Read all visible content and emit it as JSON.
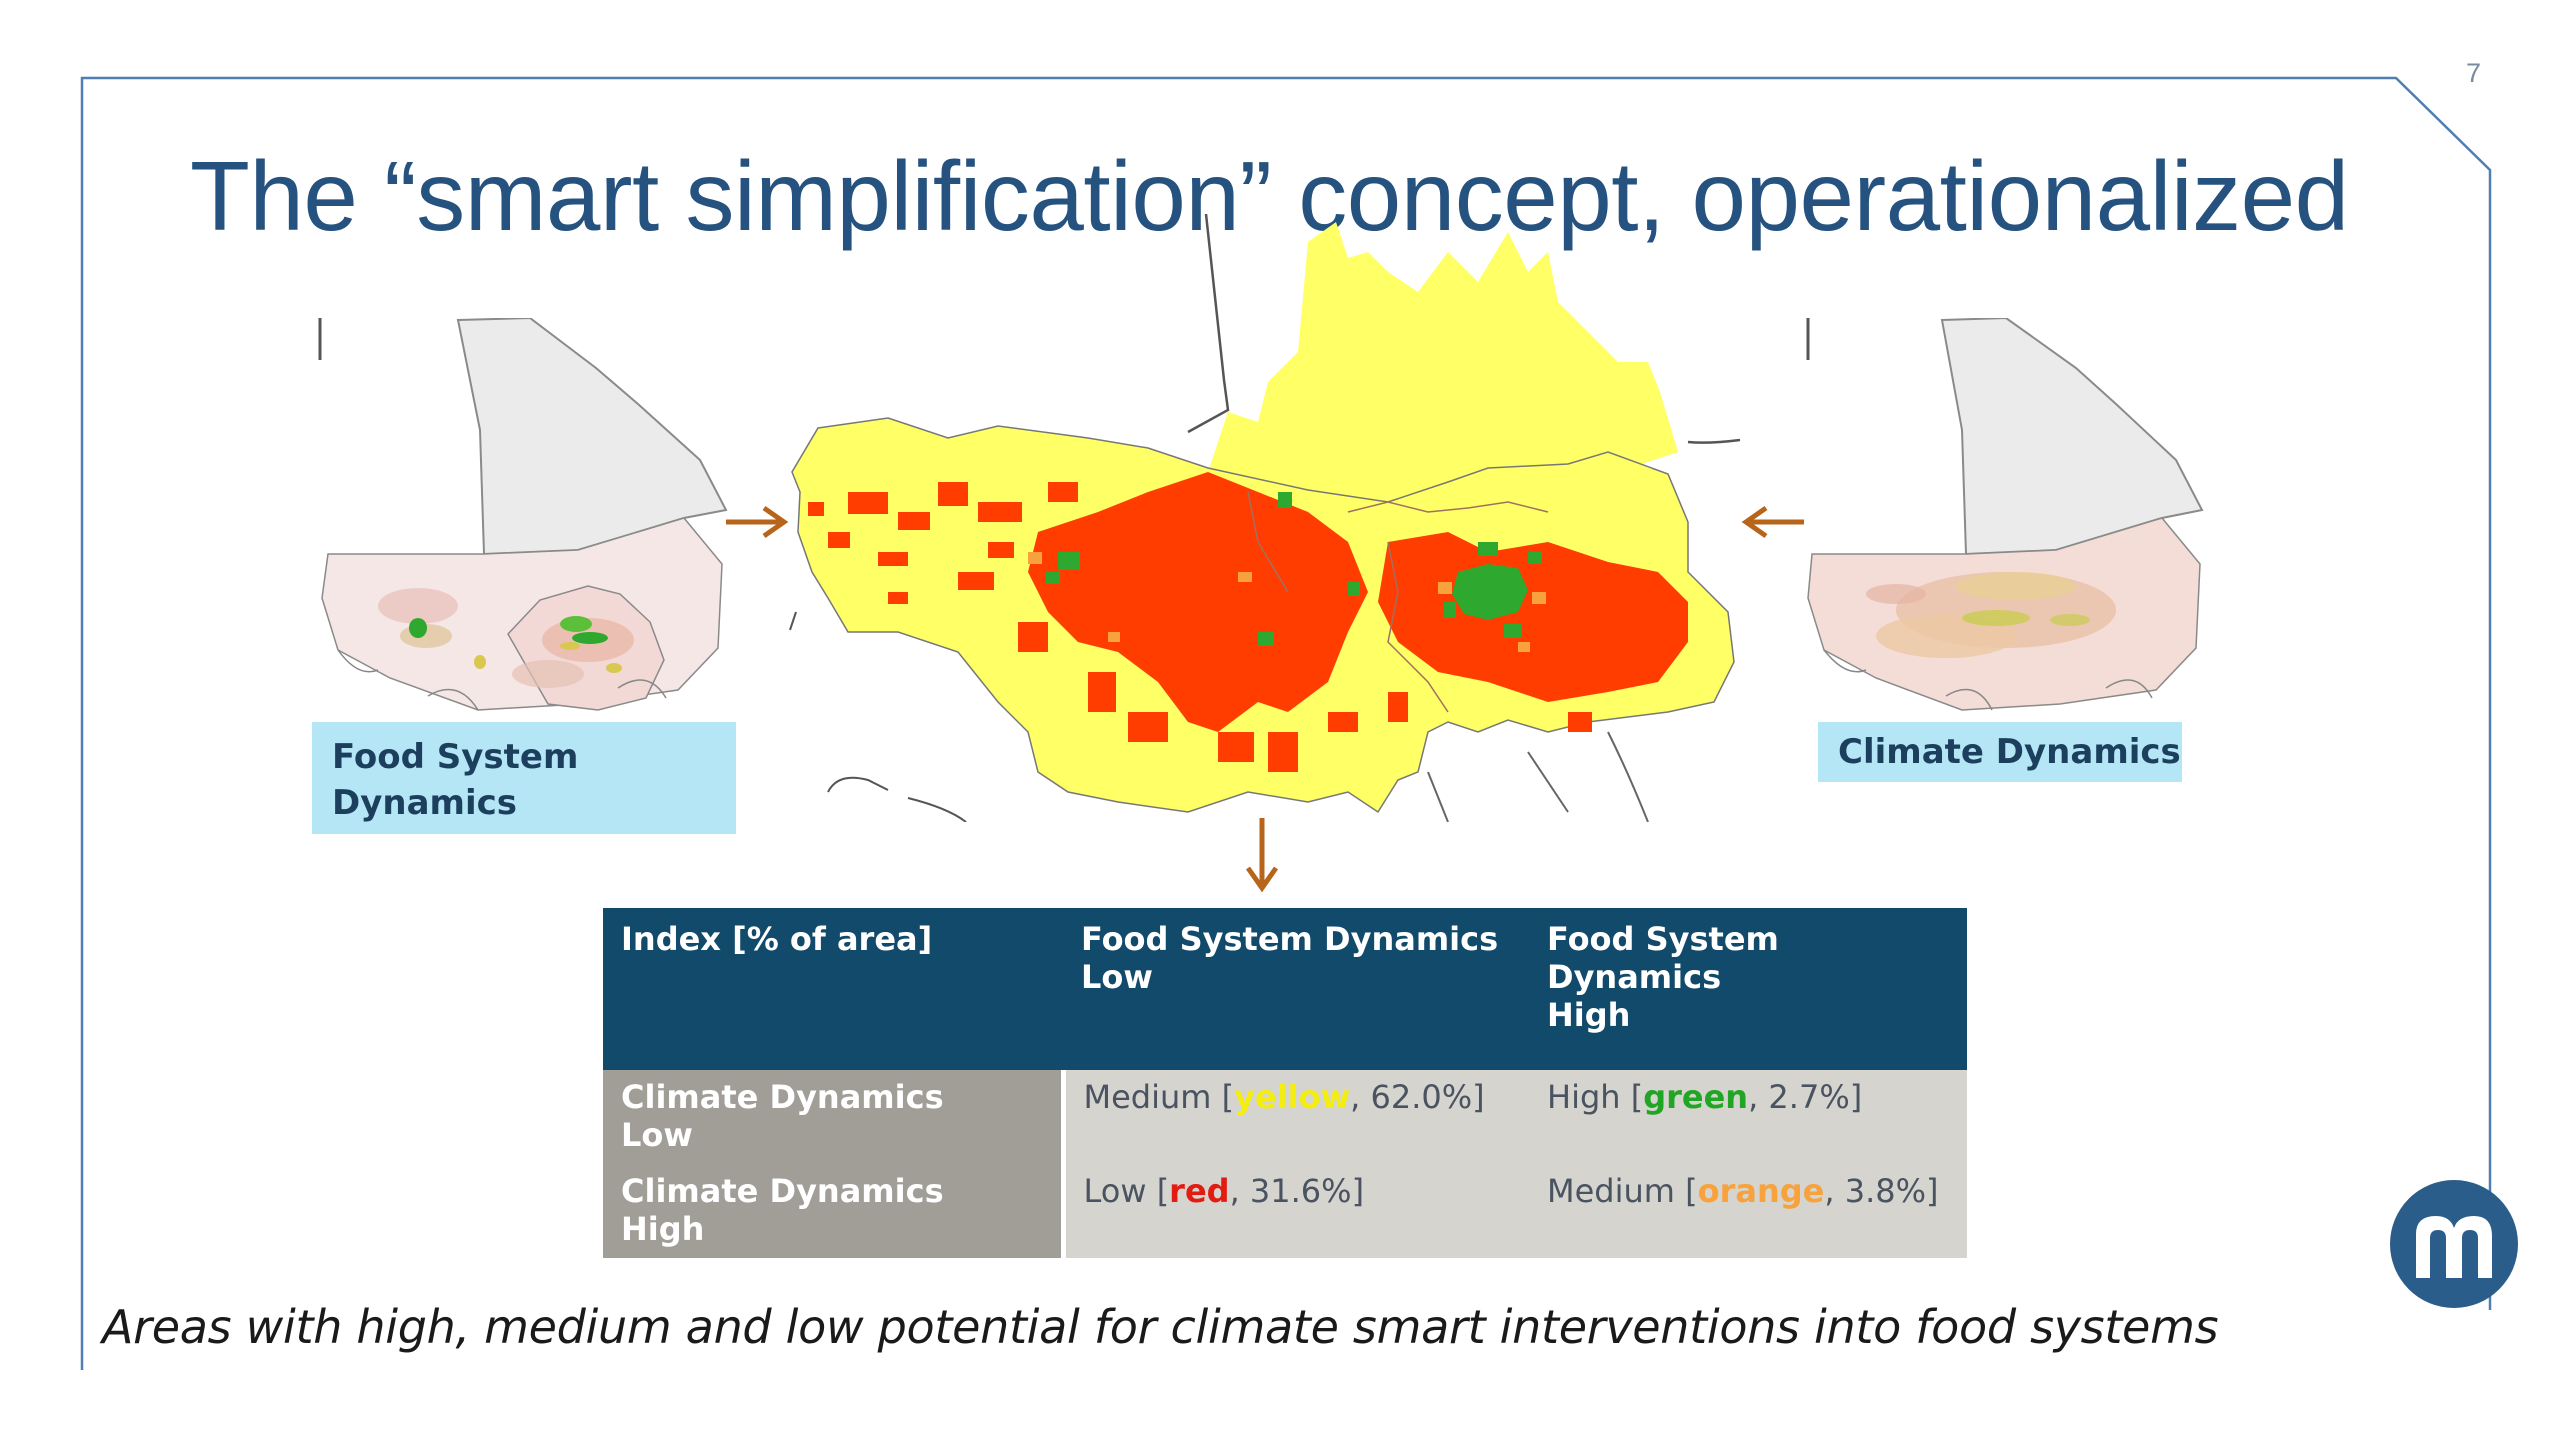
{
  "page_number": "7",
  "title": "The “smart simplification” concept, operationalized",
  "labels": {
    "left": [
      "Food System",
      "Dynamics"
    ],
    "right": "Climate Dynamics"
  },
  "table": {
    "headers": [
      [
        "Index [% of area]"
      ],
      [
        "Food System Dynamics",
        "Low"
      ],
      [
        "Food System",
        "Dynamics",
        "High"
      ]
    ],
    "rows": [
      {
        "head": [
          "Climate Dynamics",
          "Low"
        ],
        "cells": [
          {
            "label": "Medium",
            "color_word": "yellow",
            "color_class": "c-yellow",
            "value": "62.0%"
          },
          {
            "label": "High",
            "color_word": "green",
            "color_class": "c-green",
            "value": "2.7%"
          }
        ]
      },
      {
        "head": [
          "Climate Dynamics",
          "High"
        ],
        "cells": [
          {
            "label": "Low",
            "color_word": "red",
            "color_class": "c-red",
            "value": "31.6%"
          },
          {
            "label": "Medium",
            "color_word": "orange",
            "color_class": "c-orange",
            "value": "3.8%"
          }
        ]
      }
    ]
  },
  "caption": "Areas with high, medium and low potential for climate smart interventions into food systems",
  "colors": {
    "title": "#26527f",
    "frame": "#4f7fb2",
    "header_bg": "#124a6b",
    "rowhead_bg": "#a19e98",
    "cell_bg": "#d6d4cf",
    "label_bg": "#b5e6f6",
    "arrow": "#b8651c",
    "map_yellow": "#ffff66",
    "map_red": "#ff3d00",
    "map_green": "#2ea82e",
    "map_orange": "#f7a23c",
    "logo": "#2a5d8a"
  },
  "icons": {
    "logo": "m-logo-icon",
    "arrows": [
      "arrow-right-icon",
      "arrow-left-icon",
      "arrow-down-icon"
    ]
  }
}
